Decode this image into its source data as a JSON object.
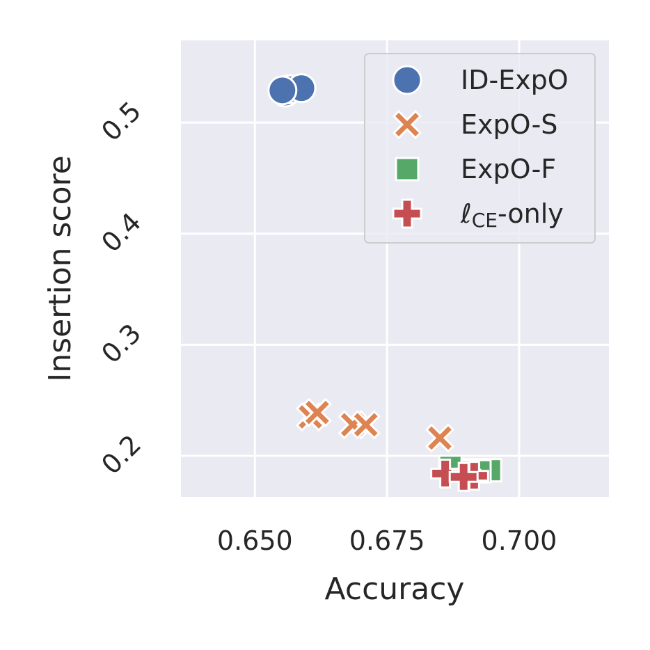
{
  "chart_data": {
    "type": "scatter",
    "title": "",
    "xlabel": "Accuracy",
    "ylabel": "Insertion score",
    "xlim": [
      0.636,
      0.717
    ],
    "ylim": [
      0.163,
      0.574
    ],
    "xticks": [
      {
        "value": 0.65,
        "label": "0.650"
      },
      {
        "value": 0.675,
        "label": "0.675"
      },
      {
        "value": 0.7,
        "label": "0.700"
      }
    ],
    "yticks": [
      {
        "value": 0.2,
        "label": "0.2"
      },
      {
        "value": 0.3,
        "label": "0.3"
      },
      {
        "value": 0.4,
        "label": "0.4"
      },
      {
        "value": 0.5,
        "label": "0.5"
      }
    ],
    "grid": true,
    "background": "#eaeaf2",
    "legend_position": "top-right",
    "series": [
      {
        "name": "ID-ExpO",
        "marker": "circle",
        "color": "#4c72b0",
        "points": [
          [
            0.6558,
            0.527
          ],
          [
            0.6565,
            0.53
          ],
          [
            0.6588,
            0.531
          ],
          [
            0.6552,
            0.529
          ]
        ]
      },
      {
        "name": "ExpO-S",
        "marker": "x",
        "color": "#dd8452",
        "points": [
          [
            0.6605,
            0.235
          ],
          [
            0.6618,
            0.239
          ],
          [
            0.6685,
            0.228
          ],
          [
            0.671,
            0.228
          ],
          [
            0.685,
            0.216
          ]
        ]
      },
      {
        "name": "ExpO-F",
        "marker": "square",
        "color": "#55a868",
        "points": [
          [
            0.687,
            0.19
          ],
          [
            0.6915,
            0.187
          ],
          [
            0.6945,
            0.187
          ],
          [
            0.6925,
            0.186
          ]
        ]
      },
      {
        "name": "ℓCE-only",
        "name_parts": {
          "base": "ℓ",
          "sub": "CE",
          "suffix": "-only"
        },
        "marker": "plus",
        "color": "#c44e52",
        "points": [
          [
            0.686,
            0.184
          ],
          [
            0.69,
            0.183
          ],
          [
            0.6915,
            0.182
          ],
          [
            0.6895,
            0.181
          ]
        ]
      }
    ]
  }
}
